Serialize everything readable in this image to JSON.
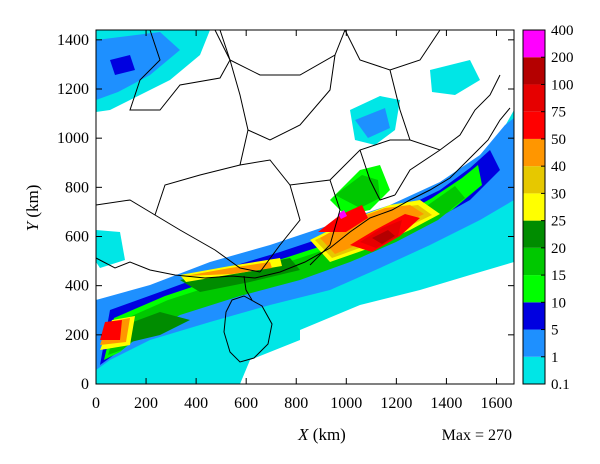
{
  "chart_data": {
    "type": "heatmap",
    "xlabel": "X (km)",
    "ylabel": "Y (km)",
    "x_ticks": [
      0,
      200,
      400,
      600,
      800,
      1000,
      1200,
      1400,
      1600
    ],
    "y_ticks": [
      0,
      200,
      400,
      600,
      800,
      1000,
      1200,
      1400
    ],
    "xlim": [
      0,
      1670
    ],
    "ylim": [
      0,
      1440
    ],
    "max_label": "Max = 270",
    "colorbar": {
      "levels": [
        "0.1",
        "1",
        "5",
        "10",
        "15",
        "20",
        "25",
        "30",
        "40",
        "50",
        "75",
        "100",
        "200",
        "400"
      ],
      "colors": [
        "#00e6e6",
        "#1e90ff",
        "#0000e0",
        "#00ff00",
        "#00c800",
        "#008c00",
        "#ffff00",
        "#e6c800",
        "#ff9600",
        "#ff0000",
        "#e60000",
        "#b40000",
        "#ff00ff"
      ]
    }
  }
}
